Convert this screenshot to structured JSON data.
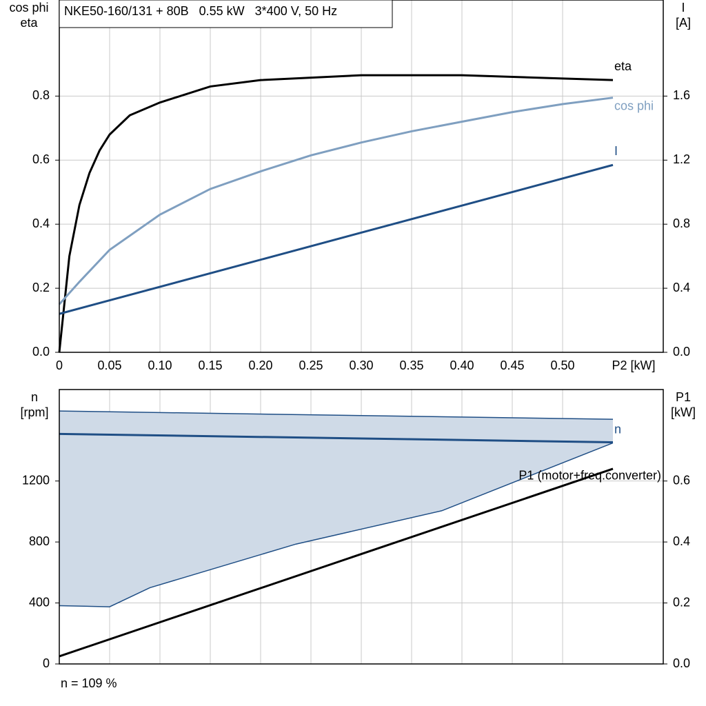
{
  "chart_data": [
    {
      "type": "line",
      "title": "NKE50-160/131 + 80B   0.55 kW   3*400 V, 50 Hz",
      "xlabel": "P2 [kW]",
      "ylabel": [
        "cos phi",
        "eta"
      ],
      "y2label": [
        "I",
        "[A]"
      ],
      "xlim": [
        0,
        0.6
      ],
      "xticks": [
        {
          "value": 0,
          "label": "0"
        },
        {
          "value": 0.05,
          "label": "0.05"
        },
        {
          "value": 0.1,
          "label": "0.10"
        },
        {
          "value": 0.15,
          "label": "0.15"
        },
        {
          "value": 0.2,
          "label": "0.20"
        },
        {
          "value": 0.25,
          "label": "0.25"
        },
        {
          "value": 0.3,
          "label": "0.30"
        },
        {
          "value": 0.35,
          "label": "0.35"
        },
        {
          "value": 0.4,
          "label": "0.40"
        },
        {
          "value": 0.45,
          "label": "0.45"
        },
        {
          "value": 0.5,
          "label": "0.50"
        }
      ],
      "ylim": [
        0,
        1.1
      ],
      "yticks": [
        {
          "value": 0,
          "label": "0.0"
        },
        0.2,
        0.4,
        0.6,
        0.8
      ],
      "y2lim": [
        0,
        2.2
      ],
      "y2ticks": [
        {
          "value": 0,
          "label": "0.0"
        },
        0.4,
        0.8,
        1.2,
        1.6
      ],
      "grid": true,
      "series": [
        {
          "name": "eta",
          "color": "#000000",
          "x": [
            0,
            0.01,
            0.02,
            0.03,
            0.04,
            0.05,
            0.07,
            0.1,
            0.15,
            0.2,
            0.3,
            0.4,
            0.5,
            0.55
          ],
          "values": [
            0,
            0.3,
            0.46,
            0.56,
            0.63,
            0.68,
            0.74,
            0.78,
            0.83,
            0.85,
            0.865,
            0.865,
            0.855,
            0.85
          ]
        },
        {
          "name": "cos phi",
          "color": "#7f9fc0",
          "x": [
            0,
            0.02,
            0.05,
            0.1,
            0.15,
            0.2,
            0.25,
            0.3,
            0.35,
            0.4,
            0.45,
            0.5,
            0.55
          ],
          "values": [
            0.15,
            0.22,
            0.32,
            0.43,
            0.51,
            0.565,
            0.615,
            0.655,
            0.69,
            0.72,
            0.75,
            0.775,
            0.795
          ]
        },
        {
          "name": "I",
          "color": "#1f4e85",
          "axis": "y2",
          "x": [
            0,
            0.55
          ],
          "values": [
            0.24,
            1.17
          ]
        }
      ]
    },
    {
      "type": "line",
      "ylabel": [
        "n",
        "[rpm]"
      ],
      "y2label": [
        "P1",
        "[kW]"
      ],
      "footer": "n = 109 %",
      "xlim": [
        0,
        0.6
      ],
      "xticks": [
        0,
        0.05,
        0.1,
        0.15,
        0.2,
        0.25,
        0.3,
        0.35,
        0.4,
        0.45,
        0.5
      ],
      "ylim": [
        0,
        1800
      ],
      "yticks": [
        0,
        400,
        800,
        1200
      ],
      "y2lim": [
        0,
        0.9
      ],
      "y2ticks": [
        {
          "value": 0,
          "label": "0.0"
        },
        0.2,
        0.4,
        0.6
      ],
      "grid": true,
      "band": {
        "color": "#cfdae7",
        "line_color": "#1f4e85",
        "upper": {
          "x": [
            0,
            0.55
          ],
          "values": [
            1659,
            1605
          ]
        },
        "lower": {
          "x": [
            0,
            0.05,
            0.09,
            0.235,
            0.38,
            0.55
          ],
          "values": [
            382,
            375,
            500,
            786,
            1005,
            1450
          ]
        }
      },
      "series": [
        {
          "name": "n",
          "color": "#1f4e85",
          "x": [
            0,
            0.55
          ],
          "values": [
            1509,
            1454
          ]
        },
        {
          "name": "P1 (motor+freq.converter)",
          "color": "#000000",
          "axis": "y2",
          "x": [
            0,
            0.55
          ],
          "values": [
            0.025,
            0.64
          ]
        }
      ]
    }
  ]
}
